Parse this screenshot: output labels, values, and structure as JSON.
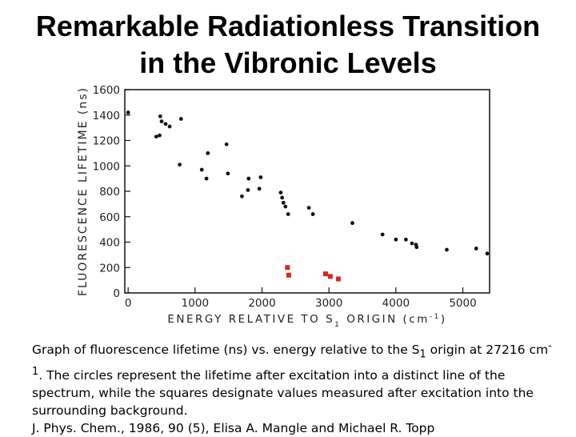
{
  "title": {
    "line1": "Remarkable Radiationless Transition",
    "line2": "in the Vibronic Levels"
  },
  "caption": {
    "part1": "Graph of fluorescence lifetime (ns) vs. energy relative to the S",
    "sub": "1",
    "part2": " origin at 27216 cm",
    "sup": "-1",
    "part3": ". The circles represent the lifetime after excitation into a distinct line of the spectrum, while the squares designate values measured after excitation into the surrounding background.",
    "citation": "J. Phys. Chem., 1986, 90 (5), Elisa A. Mangle and Michael R. Topp"
  },
  "chart_data": {
    "type": "scatter",
    "xlabel": "ENERGY RELATIVE TO S",
    "xlabel_sub": "1",
    "xlabel_tail": " ORIGIN (cm",
    "xlabel_sup": "-1",
    "xlabel_end": ")",
    "ylabel": "FLUORESCENCE LIFETIME (ns)",
    "xlim": [
      -50,
      5400
    ],
    "ylim": [
      0,
      1600
    ],
    "x_ticks": [
      0,
      1000,
      2000,
      3000,
      4000,
      5000
    ],
    "x_tick_labels": [
      "0",
      "1000",
      "2000",
      "3000",
      "4000",
      "5000"
    ],
    "y_ticks": [
      0,
      200,
      400,
      600,
      800,
      1000,
      1200,
      1400,
      1600
    ],
    "y_tick_labels": [
      "0",
      "200",
      "400",
      "600",
      "800",
      "1000",
      "1200",
      "1400",
      "1600"
    ],
    "marker_colors": {
      "circle": "#111111",
      "square": "#d42a20"
    },
    "series": [
      {
        "name": "circles",
        "marker": "circle",
        "points": [
          [
            0,
            1420
          ],
          [
            420,
            1230
          ],
          [
            470,
            1240
          ],
          [
            480,
            1390
          ],
          [
            500,
            1350
          ],
          [
            560,
            1330
          ],
          [
            620,
            1310
          ],
          [
            770,
            1010
          ],
          [
            790,
            1370
          ],
          [
            1100,
            970
          ],
          [
            1170,
            900
          ],
          [
            1190,
            1100
          ],
          [
            1470,
            1170
          ],
          [
            1490,
            940
          ],
          [
            1700,
            760
          ],
          [
            1790,
            810
          ],
          [
            1800,
            900
          ],
          [
            1960,
            820
          ],
          [
            1980,
            910
          ],
          [
            2280,
            790
          ],
          [
            2300,
            750
          ],
          [
            2320,
            710
          ],
          [
            2350,
            680
          ],
          [
            2390,
            620
          ],
          [
            2700,
            670
          ],
          [
            2760,
            620
          ],
          [
            3350,
            550
          ],
          [
            3800,
            460
          ],
          [
            4000,
            420
          ],
          [
            4150,
            420
          ],
          [
            4240,
            390
          ],
          [
            4300,
            380
          ],
          [
            4310,
            360
          ],
          [
            4760,
            340
          ],
          [
            5200,
            350
          ],
          [
            5480,
            310
          ]
        ]
      },
      {
        "name": "squares",
        "marker": "square",
        "points": [
          [
            2380,
            200
          ],
          [
            2400,
            140
          ],
          [
            2950,
            150
          ],
          [
            3020,
            130
          ],
          [
            3140,
            110
          ]
        ]
      }
    ]
  }
}
